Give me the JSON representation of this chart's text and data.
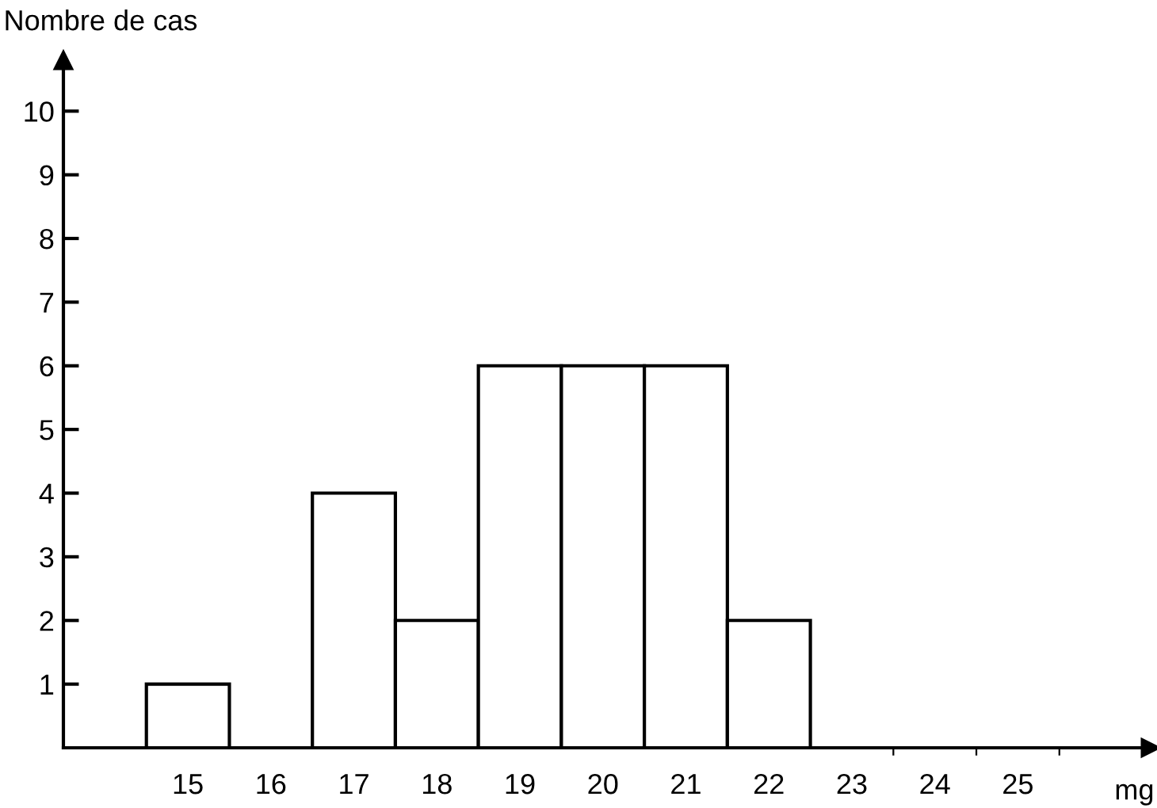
{
  "chart_data": {
    "type": "histogram",
    "bins": [
      14.5,
      15.5,
      16.5,
      17.5,
      18.5,
      19.5,
      20.5,
      21.5,
      22.5,
      23.5,
      24.5,
      25.5
    ],
    "values": [
      1,
      0,
      4,
      2,
      6,
      6,
      6,
      2,
      0,
      0,
      0
    ],
    "color": "#ffffff",
    "xlabel": "mg",
    "ylabel": "Nombre de cas",
    "xlim": [
      13.5,
      26.6
    ],
    "ylim": [
      0,
      10.8
    ],
    "xticks": [
      15,
      16,
      17,
      18,
      19,
      20,
      21,
      22,
      23,
      24,
      25,
      {
        "value": 23.5,
        "label": null
      },
      {
        "value": 24.5,
        "label": null
      },
      {
        "value": 25.5,
        "label": null
      }
    ],
    "yticks": [
      1,
      2,
      3,
      4,
      5,
      6,
      7,
      8,
      9,
      10
    ],
    "grid": false
  }
}
